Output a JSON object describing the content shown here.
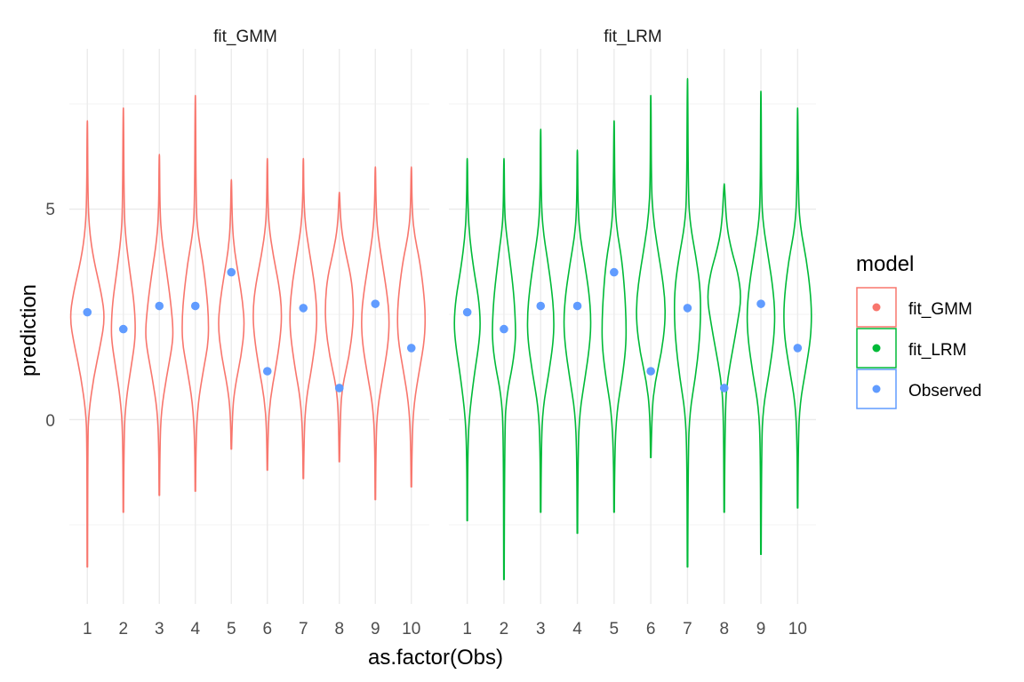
{
  "chart_data": {
    "type": "violin",
    "xlabel": "as.factor(Obs)",
    "ylabel": "prediction",
    "categories": [
      "1",
      "2",
      "3",
      "4",
      "5",
      "6",
      "7",
      "8",
      "9",
      "10"
    ],
    "yticks": [
      0,
      5
    ],
    "ylim": [
      -4.5,
      8.2
    ],
    "grid": true,
    "legend": {
      "title": "model",
      "position": "right",
      "entries": [
        {
          "name": "fit_GMM",
          "color": "#F8766D"
        },
        {
          "name": "fit_LRM",
          "color": "#00BA38"
        },
        {
          "name": "Observed",
          "color": "#619CFF"
        }
      ]
    },
    "panels": [
      {
        "name": "fit_GMM",
        "color": "#F8766D",
        "violins": [
          {
            "min": -3.5,
            "max": 7.1,
            "profile": [
              [
                -3.5,
                0.01
              ],
              [
                -0.5,
                0.02
              ],
              [
                0.2,
                0.08
              ],
              [
                1.0,
                0.32
              ],
              [
                1.8,
                0.68
              ],
              [
                2.4,
                0.9
              ],
              [
                3.0,
                0.72
              ],
              [
                3.8,
                0.32
              ],
              [
                4.5,
                0.1
              ],
              [
                5.3,
                0.03
              ],
              [
                7.1,
                0.01
              ]
            ]
          },
          {
            "min": -2.2,
            "max": 7.4,
            "profile": [
              [
                -2.2,
                0.01
              ],
              [
                -0.3,
                0.03
              ],
              [
                0.5,
                0.15
              ],
              [
                1.2,
                0.38
              ],
              [
                1.8,
                0.58
              ],
              [
                2.2,
                0.62
              ],
              [
                2.8,
                0.55
              ],
              [
                3.5,
                0.34
              ],
              [
                4.3,
                0.12
              ],
              [
                5.0,
                0.04
              ],
              [
                7.4,
                0.01
              ]
            ]
          },
          {
            "min": -1.8,
            "max": 6.3,
            "profile": [
              [
                -1.8,
                0.01
              ],
              [
                -0.6,
                0.03
              ],
              [
                0.2,
                0.1
              ],
              [
                1.0,
                0.36
              ],
              [
                1.8,
                0.68
              ],
              [
                2.2,
                0.7
              ],
              [
                2.8,
                0.58
              ],
              [
                3.5,
                0.38
              ],
              [
                4.3,
                0.12
              ],
              [
                5.0,
                0.03
              ],
              [
                6.3,
                0.01
              ]
            ]
          },
          {
            "min": -1.7,
            "max": 7.7,
            "profile": [
              [
                -1.7,
                0.01
              ],
              [
                -0.5,
                0.03
              ],
              [
                0.4,
                0.14
              ],
              [
                1.2,
                0.42
              ],
              [
                1.8,
                0.66
              ],
              [
                2.4,
                0.68
              ],
              [
                3.0,
                0.58
              ],
              [
                3.7,
                0.4
              ],
              [
                4.4,
                0.14
              ],
              [
                5.0,
                0.04
              ],
              [
                7.7,
                0.01
              ]
            ]
          },
          {
            "min": -0.7,
            "max": 5.7,
            "profile": [
              [
                -0.7,
                0.01
              ],
              [
                0.2,
                0.05
              ],
              [
                0.8,
                0.2
              ],
              [
                1.5,
                0.5
              ],
              [
                2.2,
                0.68
              ],
              [
                2.8,
                0.58
              ],
              [
                3.4,
                0.38
              ],
              [
                4.0,
                0.16
              ],
              [
                4.6,
                0.05
              ],
              [
                5.7,
                0.01
              ]
            ]
          },
          {
            "min": -1.2,
            "max": 6.2,
            "profile": [
              [
                -1.2,
                0.01
              ],
              [
                -0.2,
                0.04
              ],
              [
                0.5,
                0.15
              ],
              [
                1.2,
                0.42
              ],
              [
                2.0,
                0.68
              ],
              [
                2.6,
                0.74
              ],
              [
                3.2,
                0.6
              ],
              [
                3.9,
                0.3
              ],
              [
                4.6,
                0.08
              ],
              [
                5.2,
                0.03
              ],
              [
                6.2,
                0.01
              ]
            ]
          },
          {
            "min": -1.4,
            "max": 6.2,
            "profile": [
              [
                -1.4,
                0.01
              ],
              [
                -0.3,
                0.04
              ],
              [
                0.5,
                0.15
              ],
              [
                1.2,
                0.42
              ],
              [
                2.0,
                0.66
              ],
              [
                2.6,
                0.7
              ],
              [
                3.3,
                0.55
              ],
              [
                4.0,
                0.3
              ],
              [
                4.7,
                0.08
              ],
              [
                5.4,
                0.02
              ],
              [
                6.2,
                0.01
              ]
            ]
          },
          {
            "min": -1.0,
            "max": 5.4,
            "profile": [
              [
                -1.0,
                0.01
              ],
              [
                0.2,
                0.05
              ],
              [
                0.8,
                0.16
              ],
              [
                1.5,
                0.5
              ],
              [
                2.2,
                0.7
              ],
              [
                2.8,
                0.72
              ],
              [
                3.4,
                0.6
              ],
              [
                4.0,
                0.3
              ],
              [
                4.6,
                0.08
              ],
              [
                5.4,
                0.01
              ]
            ]
          },
          {
            "min": -1.9,
            "max": 6.0,
            "profile": [
              [
                -1.9,
                0.01
              ],
              [
                -0.5,
                0.03
              ],
              [
                0.3,
                0.12
              ],
              [
                1.0,
                0.38
              ],
              [
                1.8,
                0.66
              ],
              [
                2.4,
                0.72
              ],
              [
                3.0,
                0.6
              ],
              [
                3.7,
                0.36
              ],
              [
                4.5,
                0.1
              ],
              [
                5.2,
                0.03
              ],
              [
                6.0,
                0.01
              ]
            ]
          },
          {
            "min": -1.6,
            "max": 6.0,
            "profile": [
              [
                -1.6,
                0.01
              ],
              [
                -0.4,
                0.04
              ],
              [
                0.4,
                0.14
              ],
              [
                1.2,
                0.42
              ],
              [
                1.9,
                0.68
              ],
              [
                2.5,
                0.72
              ],
              [
                3.1,
                0.62
              ],
              [
                3.8,
                0.42
              ],
              [
                4.4,
                0.15
              ],
              [
                5.0,
                0.04
              ],
              [
                6.0,
                0.01
              ]
            ]
          }
        ],
        "observed": [
          2.55,
          2.15,
          2.7,
          2.7,
          3.5,
          1.15,
          2.65,
          0.75,
          2.75,
          1.7
        ]
      },
      {
        "name": "fit_LRM",
        "color": "#00BA38",
        "violins": [
          {
            "min": -2.4,
            "max": 6.2,
            "profile": [
              [
                -2.4,
                0.01
              ],
              [
                -1.0,
                0.02
              ],
              [
                0.0,
                0.08
              ],
              [
                1.0,
                0.34
              ],
              [
                1.8,
                0.6
              ],
              [
                2.3,
                0.68
              ],
              [
                2.9,
                0.58
              ],
              [
                3.6,
                0.32
              ],
              [
                4.4,
                0.1
              ],
              [
                5.2,
                0.03
              ],
              [
                6.2,
                0.01
              ]
            ]
          },
          {
            "min": -3.8,
            "max": 6.2,
            "profile": [
              [
                -3.8,
                0.01
              ],
              [
                -0.2,
                0.03
              ],
              [
                0.6,
                0.15
              ],
              [
                1.3,
                0.45
              ],
              [
                1.9,
                0.6
              ],
              [
                2.4,
                0.58
              ],
              [
                3.0,
                0.5
              ],
              [
                3.8,
                0.3
              ],
              [
                4.5,
                0.1
              ],
              [
                5.0,
                0.03
              ],
              [
                6.2,
                0.01
              ]
            ]
          },
          {
            "min": -2.2,
            "max": 6.9,
            "profile": [
              [
                -2.2,
                0.01
              ],
              [
                -0.6,
                0.03
              ],
              [
                0.3,
                0.12
              ],
              [
                1.1,
                0.42
              ],
              [
                1.9,
                0.66
              ],
              [
                2.5,
                0.68
              ],
              [
                3.1,
                0.56
              ],
              [
                3.8,
                0.35
              ],
              [
                4.5,
                0.12
              ],
              [
                5.2,
                0.03
              ],
              [
                6.9,
                0.01
              ]
            ]
          },
          {
            "min": -2.7,
            "max": 6.4,
            "profile": [
              [
                -2.7,
                0.01
              ],
              [
                -0.8,
                0.03
              ],
              [
                0.2,
                0.12
              ],
              [
                1.0,
                0.4
              ],
              [
                1.8,
                0.64
              ],
              [
                2.4,
                0.7
              ],
              [
                3.0,
                0.6
              ],
              [
                3.7,
                0.38
              ],
              [
                4.4,
                0.12
              ],
              [
                5.1,
                0.03
              ],
              [
                6.4,
                0.01
              ]
            ]
          },
          {
            "min": -2.2,
            "max": 7.1,
            "profile": [
              [
                -2.2,
                0.01
              ],
              [
                -0.8,
                0.03
              ],
              [
                0.2,
                0.14
              ],
              [
                1.0,
                0.42
              ],
              [
                1.7,
                0.6
              ],
              [
                2.3,
                0.62
              ],
              [
                3.0,
                0.55
              ],
              [
                3.8,
                0.4
              ],
              [
                4.5,
                0.14
              ],
              [
                5.2,
                0.04
              ],
              [
                7.1,
                0.01
              ]
            ]
          },
          {
            "min": -0.9,
            "max": 7.7,
            "profile": [
              [
                -0.9,
                0.01
              ],
              [
                0.2,
                0.05
              ],
              [
                0.9,
                0.22
              ],
              [
                1.6,
                0.55
              ],
              [
                2.3,
                0.74
              ],
              [
                2.9,
                0.72
              ],
              [
                3.5,
                0.55
              ],
              [
                4.2,
                0.3
              ],
              [
                4.9,
                0.1
              ],
              [
                5.6,
                0.03
              ],
              [
                7.7,
                0.01
              ]
            ]
          },
          {
            "min": -3.5,
            "max": 8.1,
            "profile": [
              [
                -3.5,
                0.01
              ],
              [
                -0.8,
                0.03
              ],
              [
                0.2,
                0.12
              ],
              [
                1.0,
                0.4
              ],
              [
                1.8,
                0.6
              ],
              [
                2.5,
                0.68
              ],
              [
                3.2,
                0.64
              ],
              [
                3.9,
                0.42
              ],
              [
                4.6,
                0.15
              ],
              [
                5.3,
                0.04
              ],
              [
                8.1,
                0.01
              ]
            ]
          },
          {
            "min": -2.2,
            "max": 5.6,
            "profile": [
              [
                -2.2,
                0.01
              ],
              [
                0.3,
                0.04
              ],
              [
                1.0,
                0.18
              ],
              [
                1.7,
                0.45
              ],
              [
                2.3,
                0.68
              ],
              [
                2.9,
                0.88
              ],
              [
                3.5,
                0.7
              ],
              [
                4.0,
                0.38
              ],
              [
                4.6,
                0.12
              ],
              [
                5.6,
                0.01
              ]
            ]
          },
          {
            "min": -3.2,
            "max": 7.8,
            "profile": [
              [
                -3.2,
                0.01
              ],
              [
                -0.6,
                0.03
              ],
              [
                0.3,
                0.12
              ],
              [
                1.1,
                0.42
              ],
              [
                1.9,
                0.66
              ],
              [
                2.5,
                0.72
              ],
              [
                3.1,
                0.62
              ],
              [
                3.8,
                0.4
              ],
              [
                4.6,
                0.12
              ],
              [
                5.3,
                0.03
              ],
              [
                7.8,
                0.01
              ]
            ]
          },
          {
            "min": -2.1,
            "max": 7.4,
            "profile": [
              [
                -2.1,
                0.01
              ],
              [
                -0.5,
                0.03
              ],
              [
                0.4,
                0.12
              ],
              [
                1.2,
                0.42
              ],
              [
                1.9,
                0.66
              ],
              [
                2.5,
                0.72
              ],
              [
                3.1,
                0.64
              ],
              [
                3.8,
                0.45
              ],
              [
                4.5,
                0.16
              ],
              [
                5.2,
                0.04
              ],
              [
                7.4,
                0.01
              ]
            ]
          }
        ],
        "observed": [
          2.55,
          2.15,
          2.7,
          2.7,
          3.5,
          1.15,
          2.65,
          0.75,
          2.75,
          1.7
        ]
      }
    ]
  }
}
